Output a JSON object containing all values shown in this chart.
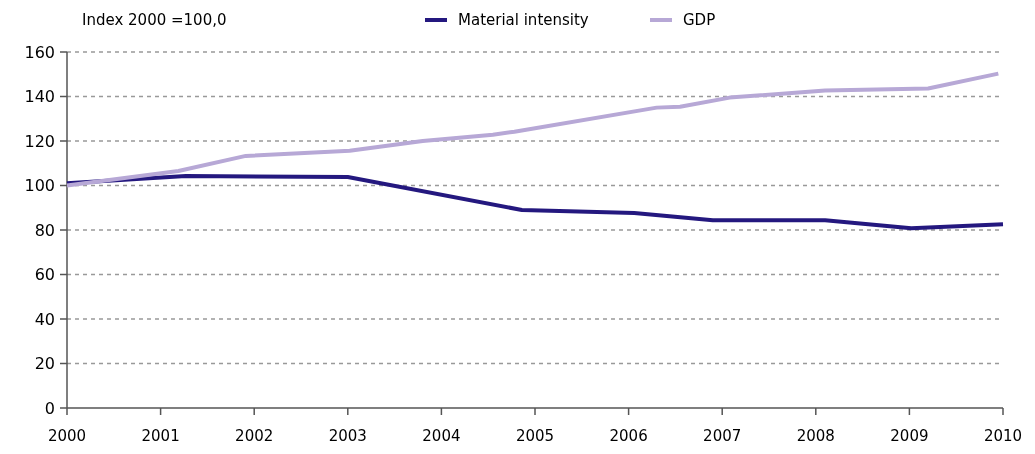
{
  "chart_data": {
    "type": "line",
    "ylabel": "Index 2000 =100,0",
    "xlim": [
      2000,
      2010
    ],
    "xticks": [
      2000,
      2001,
      2002,
      2003,
      2004,
      2005,
      2006,
      2007,
      2008,
      2009,
      2010
    ],
    "ylim": [
      0,
      160
    ],
    "yticks": [
      0,
      20,
      40,
      60,
      80,
      100,
      120,
      140,
      160
    ],
    "grid": "y",
    "legend": "top",
    "marker": "none",
    "line_style": "solid",
    "series": [
      {
        "name": "Material intensity",
        "color": "#24187f",
        "x": [
          2000,
          2001.27,
          2003,
          2004.86,
          2006.06,
          2006.9,
          2008.1,
          2009.02,
          2010
        ],
        "values": [
          101,
          104.3,
          103.8,
          89,
          87.6,
          84.4,
          84.4,
          80.8,
          82.6
        ]
      },
      {
        "name": "GDP",
        "color": "#b7a8d6",
        "x": [
          2000,
          2001.19,
          2001.91,
          2003.02,
          2003.8,
          2004.55,
          2004.78,
          2006.3,
          2006.55,
          2007.08,
          2008.1,
          2009.2,
          2009.95
        ],
        "values": [
          100,
          106.5,
          113.3,
          115.6,
          120,
          122.8,
          124.2,
          135,
          135.4,
          139.5,
          142.7,
          143.6,
          150.3
        ]
      }
    ]
  }
}
